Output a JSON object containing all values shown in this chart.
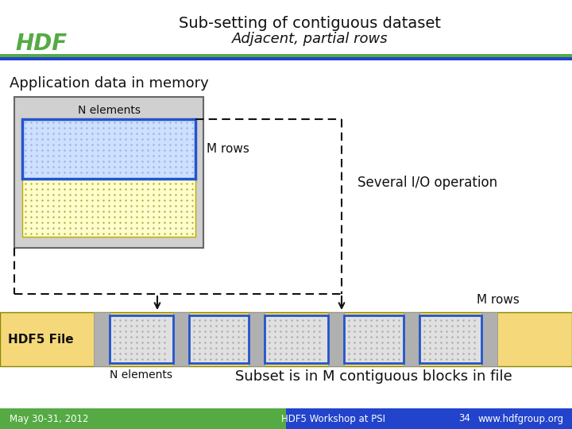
{
  "title_line1": "Sub-setting of contiguous dataset",
  "title_line2": "Adjacent, partial rows",
  "label_app_memory": "Application data in memory",
  "label_n_elements_top": "N elements",
  "label_m_rows": "M rows",
  "label_several_io": "Several I/O operation",
  "label_hdf5_file": "HDF5 File",
  "label_n_elements_bottom": "N elements",
  "label_m_rows_bottom": "M rows",
  "label_subset": "Subset is in M contiguous blocks in file",
  "footer_left": "May 30-31, 2012",
  "footer_center": "HDF5 Workshop at PSI",
  "footer_page": "34",
  "footer_right": "www.hdfgroup.org",
  "bg_color": "#ffffff",
  "title_color": "#111111",
  "green_bar_color": "#55aa44",
  "blue_bar_color": "#2244cc",
  "footer_green": "#55aa44",
  "footer_blue": "#2244cc",
  "memory_box_bg": "#d0d0d0",
  "memory_box_border": "#666666",
  "dotted_rect_fill": "#ffffcc",
  "dotted_rect_border": "#bbaa00",
  "selected_rect_fill": "#cce0ff",
  "selected_rect_border": "#2255cc",
  "hdf5_bar_bg": "#f5d87a",
  "hdf5_sep_color": "#b0b0b0",
  "hdf5_block_fill": "#e0e0e0",
  "hdf5_block_border": "#2255cc",
  "dot_color_yellow": "#bbaa44",
  "dot_color_blue": "#aaaadd",
  "dot_color_gray": "#aaaaaa",
  "arrow_color": "#111111",
  "dashed_color": "#111111"
}
